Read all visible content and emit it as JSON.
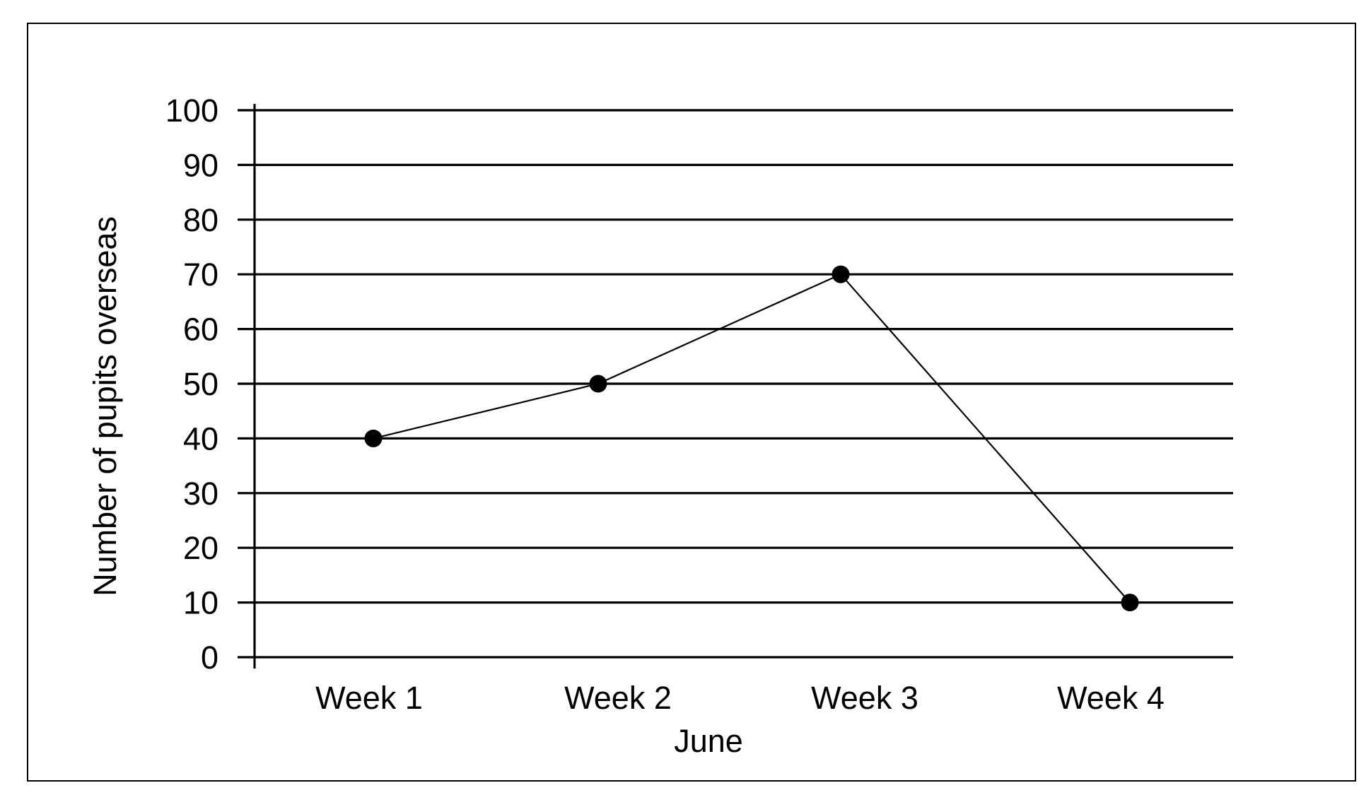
{
  "chart_data": {
    "type": "line",
    "title": "",
    "xlabel": "June",
    "ylabel": "Number of pupits overseas",
    "categories": [
      "Week 1",
      "Week 2",
      "Week 3",
      "Week 4"
    ],
    "series": [
      {
        "values": [
          40,
          50,
          70,
          10
        ]
      }
    ],
    "ylim": [
      0,
      100
    ],
    "yticks": [
      "0",
      "10",
      "20",
      "30",
      "40",
      "50",
      "60",
      "70",
      "80",
      "90",
      "100"
    ],
    "grid": true,
    "legend": "none",
    "colors": {
      "line": "#000000",
      "marker": "#000000",
      "grid": "#000000",
      "frame": "#000000",
      "background": "#ffffff"
    }
  }
}
